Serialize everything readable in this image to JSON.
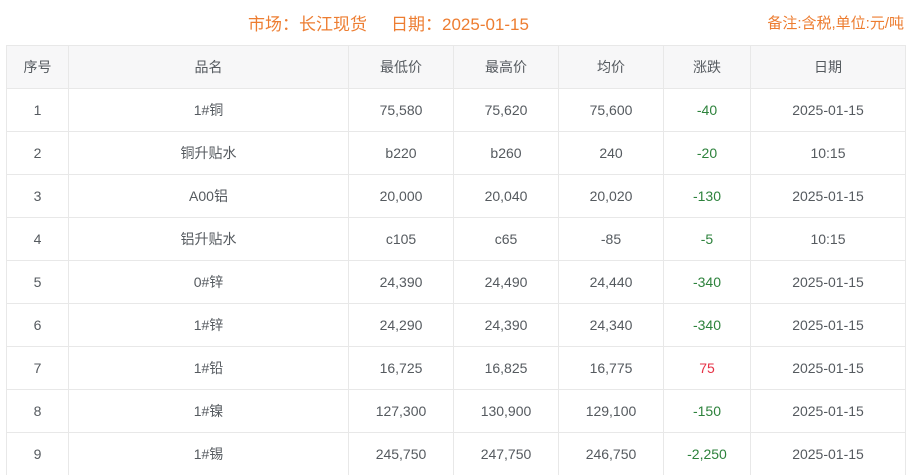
{
  "header": {
    "market": "市场：长江现货",
    "date": "日期：2025-01-15",
    "note": "备注:含税,单位:元/吨"
  },
  "colors": {
    "accent_orange": "#ed7d31",
    "change_up_red": "#e63246",
    "change_down_green": "#2d823c",
    "header_row_bg": "#f7f7f8",
    "grid_border": "#e8e8e8"
  },
  "table": {
    "headers": [
      "序号",
      "品名",
      "最低价",
      "最高价",
      "均价",
      "涨跌",
      "日期"
    ],
    "header_keys": [
      "no",
      "name",
      "low",
      "high",
      "avg",
      "change",
      "date"
    ],
    "rows": [
      {
        "no": "1",
        "name": "1#铜",
        "low": "75,580",
        "high": "75,620",
        "avg": "75,600",
        "change": "-40",
        "change_color": "green",
        "date": "2025-01-15"
      },
      {
        "no": "2",
        "name": "铜升贴水",
        "low": "b220",
        "high": "b260",
        "avg": "240",
        "change": "-20",
        "change_color": "green",
        "date": "10:15"
      },
      {
        "no": "3",
        "name": "A00铝",
        "low": "20,000",
        "high": "20,040",
        "avg": "20,020",
        "change": "-130",
        "change_color": "green",
        "date": "2025-01-15"
      },
      {
        "no": "4",
        "name": "铝升贴水",
        "low": "c105",
        "high": "c65",
        "avg": "-85",
        "change": "-5",
        "change_color": "green",
        "date": "10:15"
      },
      {
        "no": "5",
        "name": "0#锌",
        "low": "24,390",
        "high": "24,490",
        "avg": "24,440",
        "change": "-340",
        "change_color": "green",
        "date": "2025-01-15"
      },
      {
        "no": "6",
        "name": "1#锌",
        "low": "24,290",
        "high": "24,390",
        "avg": "24,340",
        "change": "-340",
        "change_color": "green",
        "date": "2025-01-15"
      },
      {
        "no": "7",
        "name": "1#铅",
        "low": "16,725",
        "high": "16,825",
        "avg": "16,775",
        "change": "75",
        "change_color": "red",
        "date": "2025-01-15"
      },
      {
        "no": "8",
        "name": "1#镍",
        "low": "127,300",
        "high": "130,900",
        "avg": "129,100",
        "change": "-150",
        "change_color": "green",
        "date": "2025-01-15"
      },
      {
        "no": "9",
        "name": "1#锡",
        "low": "245,750",
        "high": "247,750",
        "avg": "246,750",
        "change": "-2,250",
        "change_color": "green",
        "date": "2025-01-15"
      }
    ]
  }
}
